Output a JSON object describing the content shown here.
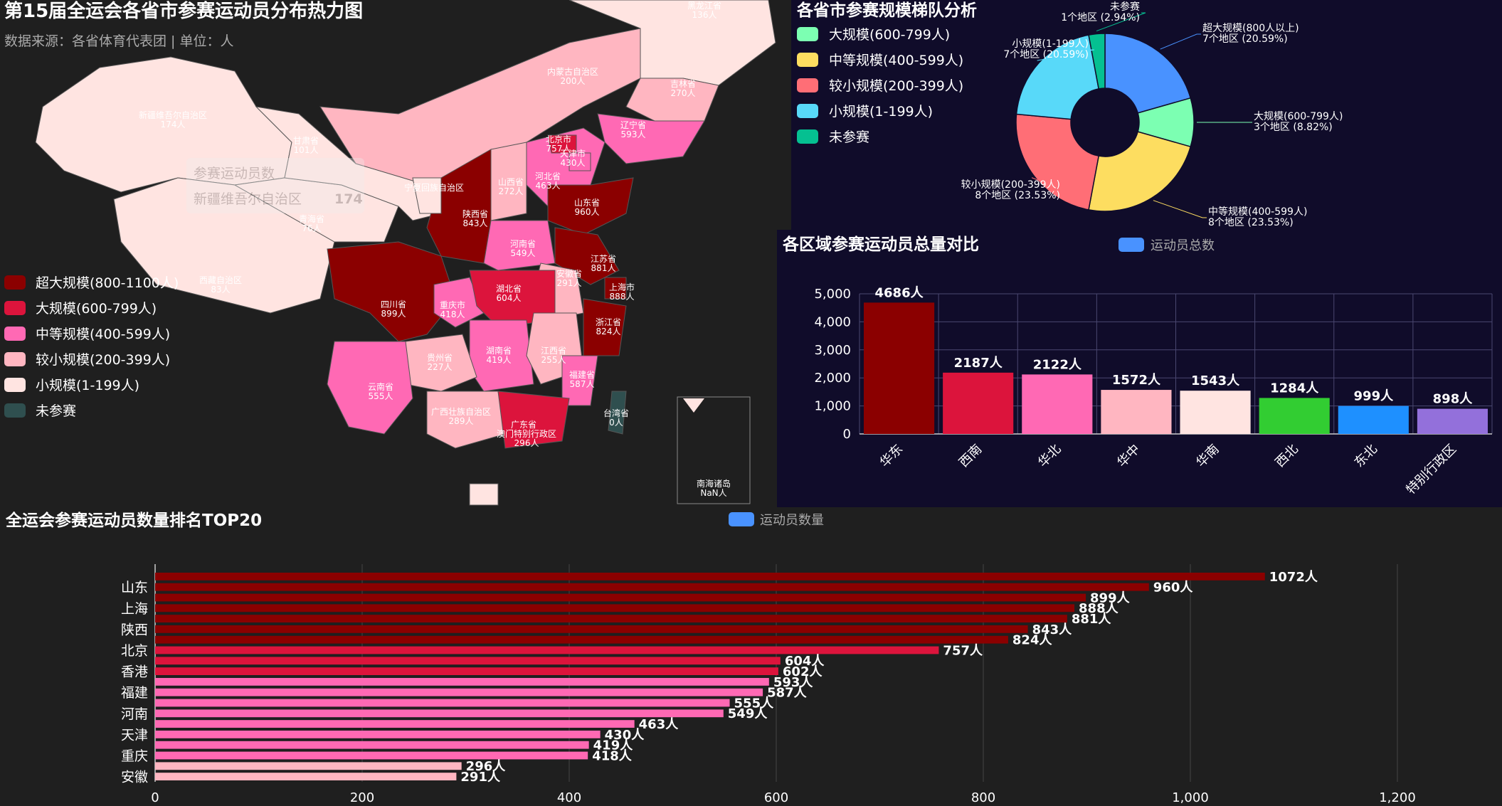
{
  "map": {
    "title": "第15届全运会各省市参赛运动员分布热力图",
    "subtitle": "数据来源：各省体育代表团 | 单位：人",
    "tooltip": {
      "title": "参赛运动员数",
      "region": "新疆维吾尔自治区",
      "value": "174"
    },
    "legend": [
      {
        "label": "超大规模(800-1100人)",
        "color": "#8b0000"
      },
      {
        "label": "大规模(600-799人)",
        "color": "#dc143c"
      },
      {
        "label": "中等规模(400-599人)",
        "color": "#ff69b4"
      },
      {
        "label": "较小规模(200-399人)",
        "color": "#ffb6c1"
      },
      {
        "label": "小规模(1-199人)",
        "color": "#ffe4e1"
      },
      {
        "label": "未参赛",
        "color": "#2f4f4f"
      }
    ],
    "regions": [
      {
        "name": "黑龙江省",
        "value": "136人"
      },
      {
        "name": "吉林省",
        "value": "270人"
      },
      {
        "name": "辽宁省",
        "value": "593人"
      },
      {
        "name": "内蒙古自治区",
        "value": "200人"
      },
      {
        "name": "北京市",
        "value": "757人"
      },
      {
        "name": "天津市",
        "value": "430人"
      },
      {
        "name": "河北省",
        "value": "463人"
      },
      {
        "name": "山西省",
        "value": "272人"
      },
      {
        "name": "山东省",
        "value": "960人"
      },
      {
        "name": "新疆维吾尔自治区",
        "value": "174人"
      },
      {
        "name": "甘肃省",
        "value": "101人"
      },
      {
        "name": "宁夏回族自治区",
        "value": ""
      },
      {
        "name": "陕西省",
        "value": "843人"
      },
      {
        "name": "河南省",
        "value": "549人"
      },
      {
        "name": "江苏省",
        "value": "881人"
      },
      {
        "name": "安徽省",
        "value": "291人"
      },
      {
        "name": "上海市",
        "value": "888人"
      },
      {
        "name": "青海省",
        "value": "76人"
      },
      {
        "name": "西藏自治区",
        "value": "83人"
      },
      {
        "name": "四川省",
        "value": "899人"
      },
      {
        "name": "重庆市",
        "value": "418人"
      },
      {
        "name": "湖北省",
        "value": "604人"
      },
      {
        "name": "浙江省",
        "value": "824人"
      },
      {
        "name": "湖南省",
        "value": "419人"
      },
      {
        "name": "江西省",
        "value": "255人"
      },
      {
        "name": "贵州省",
        "value": "227人"
      },
      {
        "name": "云南省",
        "value": "555人"
      },
      {
        "name": "福建省",
        "value": "587人"
      },
      {
        "name": "台湾省",
        "value": "0人"
      },
      {
        "name": "广西壮族自治区",
        "value": "289人"
      },
      {
        "name": "广东省",
        "value": ""
      },
      {
        "name": "澳门特别行政区",
        "value": "296人"
      },
      {
        "name": "南海诸岛",
        "value": "NaN人"
      }
    ]
  },
  "donut": {
    "title": "各省市参赛规模梯队分析",
    "legend": [
      {
        "label": "大规模(600-799人)",
        "color": "#7cffb2"
      },
      {
        "label": "中等规模(400-599人)",
        "color": "#fddd60"
      },
      {
        "label": "较小规模(200-399人)",
        "color": "#ff6e76"
      },
      {
        "label": "小规模(1-199人)",
        "color": "#58d9f9"
      },
      {
        "label": "未参赛",
        "color": "#05c091"
      }
    ]
  },
  "bar": {
    "title": "各区域参赛运动员总量对比",
    "legend_label": "运动员总数",
    "legend_color": "#4992ff"
  },
  "top20": {
    "title": "全运会参赛运动员数量排名TOP20",
    "legend_label": "运动员数量",
    "legend_color": "#4992ff"
  },
  "chart_data": [
    {
      "type": "pie",
      "title": "各省市参赛规模梯队分析",
      "slices": [
        {
          "name": "超大规模(800人以上)",
          "label": "超大规模(800人以上)",
          "count_label": "7个地区 (20.59%)",
          "value": 7,
          "percent": 20.59,
          "color": "#4992ff"
        },
        {
          "name": "大规模(600-799人)",
          "label": "大规模(600-799人)",
          "count_label": "3个地区 (8.82%)",
          "value": 3,
          "percent": 8.82,
          "color": "#7cffb2"
        },
        {
          "name": "中等规模(400-599人)",
          "label": "中等规模(400-599人)",
          "count_label": "8个地区 (23.53%)",
          "value": 8,
          "percent": 23.53,
          "color": "#fddd60"
        },
        {
          "name": "较小规模(200-399人)",
          "label": "较小规模(200-399人)",
          "count_label": "8个地区 (23.53%)",
          "value": 8,
          "percent": 23.53,
          "color": "#ff6e76"
        },
        {
          "name": "小规模(1-199人)",
          "label": "小规模(1-199人)",
          "count_label": "7个地区 (20.59%)",
          "value": 7,
          "percent": 20.59,
          "color": "#58d9f9"
        },
        {
          "name": "未参赛",
          "label": "未参赛",
          "count_label": "1个地区 (2.94%)",
          "value": 1,
          "percent": 2.94,
          "color": "#05c091"
        }
      ]
    },
    {
      "type": "bar",
      "title": "各区域参赛运动员总量对比",
      "categories": [
        "华东",
        "西南",
        "华北",
        "华中",
        "华南",
        "西北",
        "东北",
        "特别行政区"
      ],
      "values": [
        4686,
        2187,
        2122,
        1572,
        1543,
        1284,
        999,
        898
      ],
      "colors": [
        "#8b0000",
        "#dc143c",
        "#ff69b4",
        "#ffb6c1",
        "#ffe4e1",
        "#32cd32",
        "#1e90ff",
        "#9370db"
      ],
      "value_suffix": "人",
      "yticks": [
        "0",
        "1,000",
        "2,000",
        "3,000",
        "4,000",
        "5,000"
      ],
      "ylim": [
        0,
        5000
      ]
    },
    {
      "type": "bar",
      "orientation": "horizontal",
      "title": "全运会参赛运动员数量排名TOP20",
      "values": [
        1072,
        960,
        899,
        888,
        881,
        843,
        824,
        757,
        604,
        602,
        593,
        587,
        555,
        549,
        463,
        430,
        419,
        418,
        296,
        291
      ],
      "visible_category_labels": [
        "山东",
        "上海",
        "陕西",
        "北京",
        "香港",
        "福建",
        "河南",
        "天津",
        "重庆",
        "安徽"
      ],
      "value_suffix": "人",
      "xticks": [
        "0",
        "200",
        "400",
        "600",
        "800",
        "1,000",
        "1,200"
      ],
      "xlim": [
        0,
        1200
      ]
    }
  ]
}
